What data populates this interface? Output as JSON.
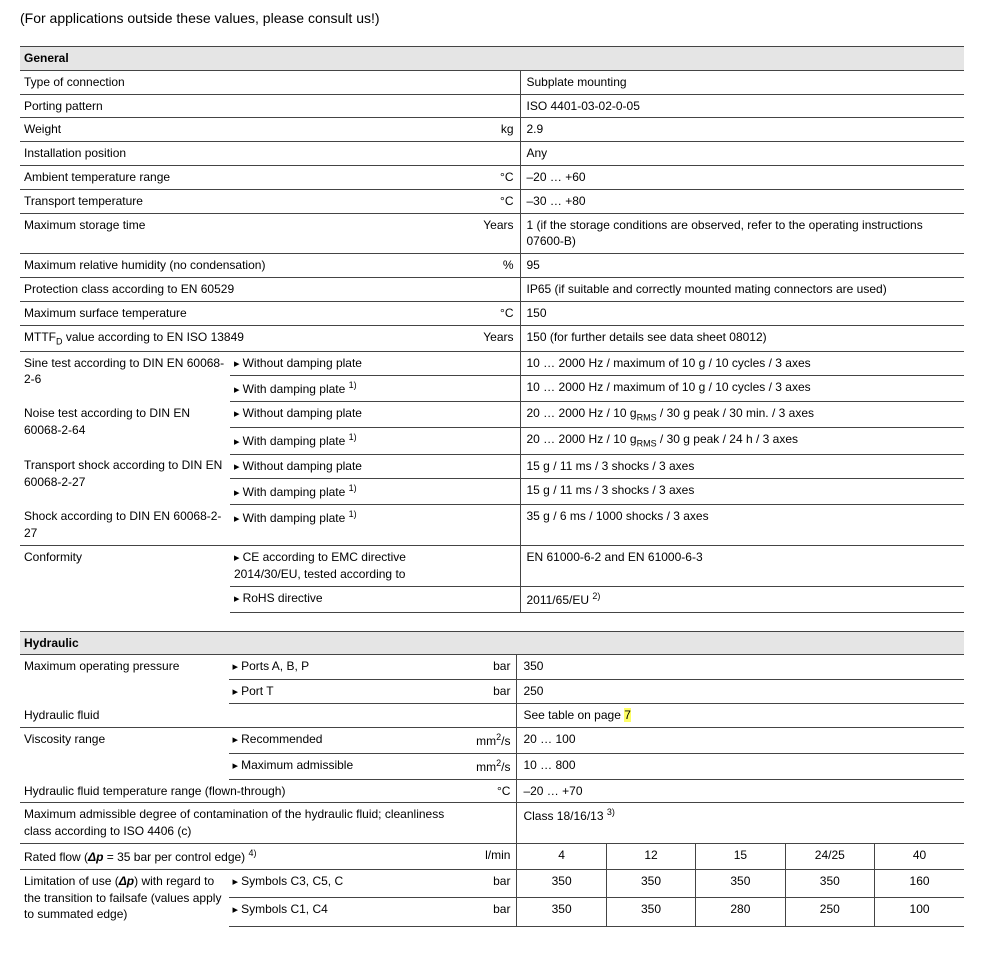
{
  "intro": "(For applications outside these values, please consult us!)",
  "sections": {
    "general": {
      "title": "General",
      "rows": {
        "connection": {
          "label": "Type of connection",
          "unit": "",
          "value": "Subplate mounting"
        },
        "porting": {
          "label": "Porting pattern",
          "unit": "",
          "value": "ISO 4401-03-02-0-05"
        },
        "weight": {
          "label": "Weight",
          "unit": "kg",
          "value": "2.9"
        },
        "install": {
          "label": "Installation position",
          "unit": "",
          "value": "Any"
        },
        "ambient": {
          "label": "Ambient temperature range",
          "unit": "°C",
          "value": "–20 … +60"
        },
        "transport": {
          "label": "Transport temperature",
          "unit": "°C",
          "value": "–30 … +80"
        },
        "storage": {
          "label": "Maximum storage time",
          "unit": "Years",
          "value": "1 (if the storage conditions are observed, refer to the operating instructions 07600-B)"
        },
        "humidity": {
          "label": "Maximum relative humidity (no condensation)",
          "unit": "%",
          "value": "95"
        },
        "protection": {
          "label": "Protection class according to EN 60529",
          "unit": "",
          "value": "IP65 (if suitable and correctly mounted mating connectors are used)"
        },
        "surface": {
          "label": "Maximum surface temperature",
          "unit": "°C",
          "value": "150"
        },
        "mttfd": {
          "label_html": "MTTF<sub>D</sub> value according to EN ISO 13849",
          "unit": "Years",
          "value": "150 (for further details see data sheet 08012)"
        },
        "sine": {
          "label": "Sine test according to DIN EN 60068-2-6",
          "sub1": {
            "label": "Without damping plate",
            "value": "10 … 2000 Hz / maximum of 10 g / 10 cycles / 3 axes"
          },
          "sub2": {
            "label_html": "With damping plate <sup>1)</sup>",
            "value": "10 … 2000 Hz / maximum of 10 g / 10 cycles / 3 axes"
          }
        },
        "noise": {
          "label": "Noise test according to DIN EN 60068-2-64",
          "sub1": {
            "label": "Without damping plate",
            "value_html": "20 … 2000 Hz / 10 g<sub>RMS</sub> / 30 g peak / 30 min. / 3 axes"
          },
          "sub2": {
            "label_html": "With damping plate <sup>1)</sup>",
            "value_html": "20 … 2000 Hz / 10 g<sub>RMS</sub> / 30 g peak / 24 h / 3 axes"
          }
        },
        "tshock": {
          "label": "Transport shock according to DIN EN 60068-2-27",
          "sub1": {
            "label": "Without damping plate",
            "value": "15 g / 11 ms / 3 shocks / 3 axes"
          },
          "sub2": {
            "label_html": "With damping plate <sup>1)</sup>",
            "value": "15 g / 11 ms / 3 shocks / 3 axes"
          }
        },
        "shock": {
          "label": "Shock according to DIN EN 60068-2-27",
          "sub1": {
            "label_html": "With damping plate <sup>1)</sup>",
            "value": "35 g / 6 ms / 1000 shocks / 3 axes"
          }
        },
        "conformity": {
          "label": "Conformity",
          "sub1": {
            "label": "CE according to EMC directive 2014/30/EU, tested according to",
            "value": "EN 61000-6-2 and EN 61000-6-3"
          },
          "sub2": {
            "label": "RoHS directive",
            "value_html": "2011/65/EU <sup>2)</sup>"
          }
        }
      }
    },
    "hydraulic": {
      "title": "Hydraulic",
      "rows": {
        "pressure": {
          "label": "Maximum operating pressure",
          "sub1": {
            "label": "Ports A, B, P",
            "unit": "bar",
            "value": "350"
          },
          "sub2": {
            "label": "Port T",
            "unit": "bar",
            "value": "250"
          }
        },
        "fluid": {
          "label": "Hydraulic fluid",
          "value_pre": "See table on page ",
          "value_hl": "7"
        },
        "viscosity": {
          "label": "Viscosity range",
          "sub1": {
            "label": "Recommended",
            "unit_html": "mm<sup>2</sup>/s",
            "value": "20 … 100"
          },
          "sub2": {
            "label": "Maximum admissible",
            "unit_html": "mm<sup>2</sup>/s",
            "value": "10 … 800"
          }
        },
        "fluidtemp": {
          "label": "Hydraulic fluid temperature range (flown-through)",
          "unit": "°C",
          "value": "–20 … +70"
        },
        "contam": {
          "label": "Maximum admissible degree of contamination of the hydraulic fluid; cleanliness class according to ISO 4406 (c)",
          "value_html": "Class 18/16/13 <sup>3)</sup>"
        },
        "ratedflow": {
          "label_html": "Rated flow (<b><i>Δp</i></b> = 35 bar per control edge) <sup>4)</sup>",
          "unit": "l/min",
          "cells": [
            "4",
            "12",
            "15",
            "24/25",
            "40"
          ]
        },
        "limit": {
          "label_html": "Limitation of use (<b><i>Δp</i></b>) with regard to the transition to failsafe (values apply to summated edge)",
          "sub1": {
            "label": "Symbols C3, C5, C",
            "unit": "bar",
            "cells": [
              "350",
              "350",
              "350",
              "350",
              "160"
            ]
          },
          "sub2": {
            "label": "Symbols C1, C4",
            "unit": "bar",
            "cells": [
              "350",
              "350",
              "280",
              "250",
              "100"
            ]
          }
        }
      }
    }
  }
}
